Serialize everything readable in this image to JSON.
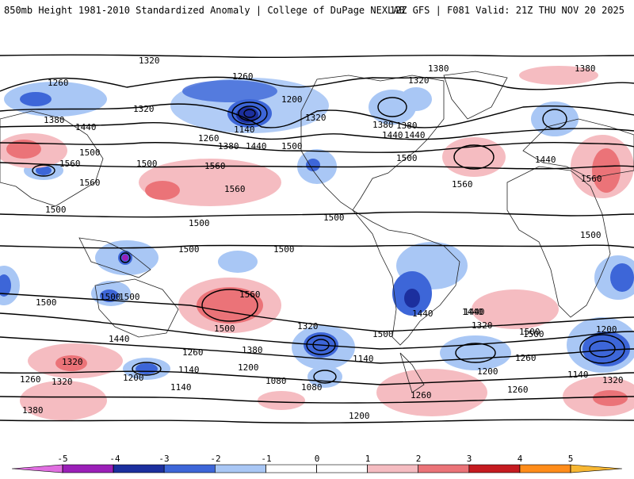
{
  "header": {
    "title_left": "850mb Height 1981-2010 Standardized Anomaly | College of DuPage NEXLAB",
    "title_right": "12Z GFS | F081 Valid: 21Z THU NOV 20 2025"
  },
  "colorbar": {
    "ticks": [
      "-5",
      "-4",
      "-3",
      "-2",
      "-1",
      "0",
      "1",
      "2",
      "3",
      "4",
      "5"
    ],
    "colors": [
      "#e06ee0",
      "#9b1fb8",
      "#1c2f9e",
      "#3d66d8",
      "#a9c7f5",
      "#ffffff",
      "#ffffff",
      "#f5bcc1",
      "#eb7378",
      "#c51b20",
      "#ff8c1a",
      "#f7b733"
    ]
  },
  "contour_labels": [
    "1320",
    "1260",
    "1380",
    "1440",
    "1500",
    "1560",
    "1260",
    "1200",
    "1320",
    "1140",
    "1260",
    "1380",
    "1440",
    "1500",
    "1320",
    "1380",
    "1320",
    "1440",
    "1380",
    "1380",
    "1440",
    "1560",
    "1560",
    "1560",
    "1500",
    "1500",
    "1500",
    "1500",
    "1560",
    "1560",
    "1500",
    "1500",
    "1500",
    "1500",
    "1500",
    "1500",
    "1500",
    "1500",
    "1440",
    "1440",
    "1500",
    "1560",
    "1500",
    "1320",
    "1440",
    "1380",
    "1260",
    "1140",
    "1200",
    "1080",
    "1080",
    "1140",
    "1200",
    "1140",
    "1200",
    "1200",
    "1260",
    "1320",
    "1380",
    "1260",
    "1320",
    "1200",
    "1140",
    "1260",
    "1320",
    "1260",
    "1500",
    "1440",
    "1320",
    "1380",
    "1440"
  ]
}
